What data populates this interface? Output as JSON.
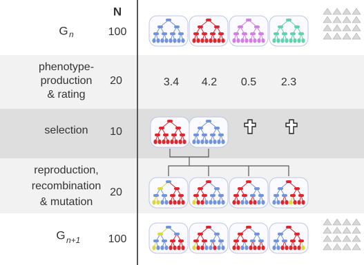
{
  "header": {
    "n_label": "N"
  },
  "rows": [
    {
      "label": {
        "base": "G",
        "sub": "n"
      },
      "n": 100
    },
    {
      "label_lines": [
        "phenotype-",
        "production",
        "& rating"
      ],
      "n": 20,
      "scores": [
        3.4,
        4.2,
        0.5,
        2.3
      ]
    },
    {
      "label_lines": [
        "selection"
      ],
      "n": 10
    },
    {
      "label_lines": [
        "reproduction,",
        "recombination",
        "& mutation"
      ],
      "n": 20
    },
    {
      "label": {
        "base": "G",
        "sub": "n+1"
      },
      "n": 100
    }
  ]
}
